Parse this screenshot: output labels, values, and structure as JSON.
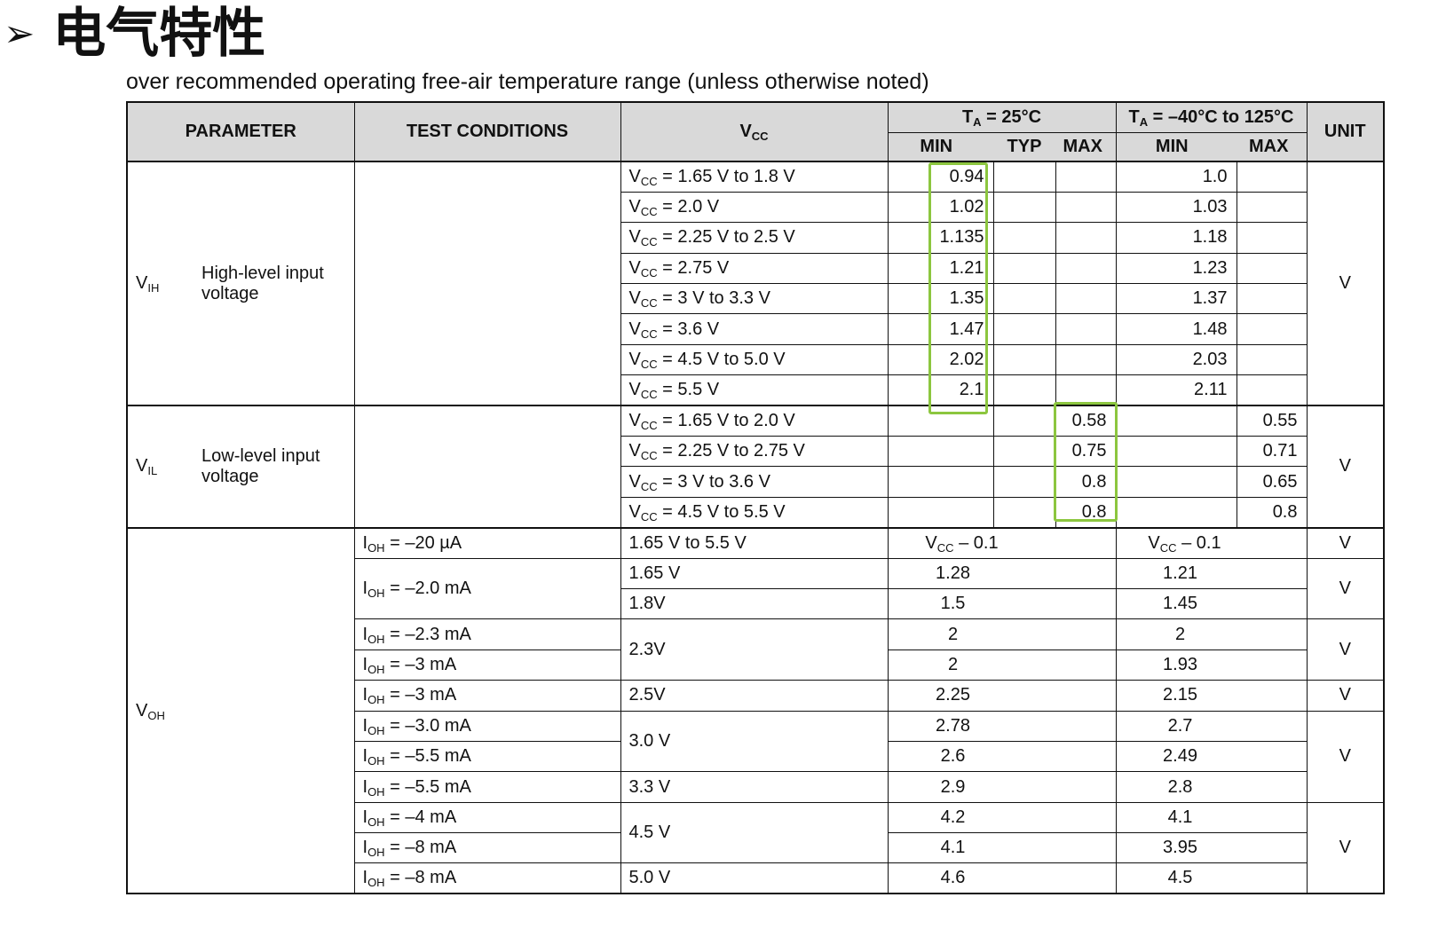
{
  "heading": {
    "arrow": "➢",
    "title": "电气特性"
  },
  "subtitle": "over recommended operating free-air temperature range (unless otherwise noted)",
  "table": {
    "headers": {
      "parameter": "PARAMETER",
      "test_conditions": "TEST CONDITIONS",
      "vcc": "V",
      "vcc_sub": "CC",
      "ta25_pre": "T",
      "ta25_sub": "A",
      "ta25_post": " = 25°C",
      "tarange_pre": "T",
      "tarange_sub": "A",
      "tarange_post": " = –40°C to 125°C",
      "unit": "UNIT",
      "min": "MIN",
      "typ": "TYP",
      "max": "MAX"
    },
    "vih": {
      "symbol": "V",
      "symbol_sub": "IH",
      "description": "High-level input voltage",
      "unit": "V",
      "rows": [
        {
          "vcc": " = 1.65 V to 1.8 V",
          "min25": "0.94",
          "minfull": "1.0"
        },
        {
          "vcc": " = 2.0 V",
          "min25": "1.02",
          "minfull": "1.03"
        },
        {
          "vcc": " = 2.25 V to 2.5 V",
          "min25": "1.135",
          "minfull": "1.18"
        },
        {
          "vcc": " = 2.75 V",
          "min25": "1.21",
          "minfull": "1.23"
        },
        {
          "vcc": " = 3 V to 3.3 V",
          "min25": "1.35",
          "minfull": "1.37"
        },
        {
          "vcc": " = 3.6 V",
          "min25": "1.47",
          "minfull": "1.48"
        },
        {
          "vcc": " = 4.5 V to 5.0 V",
          "min25": "2.02",
          "minfull": "2.03"
        },
        {
          "vcc": " = 5.5 V",
          "min25": "2.1",
          "minfull": "2.11"
        }
      ]
    },
    "vil": {
      "symbol": "V",
      "symbol_sub": "IL",
      "description": "Low-level input voltage",
      "unit": "V",
      "rows": [
        {
          "vcc": " = 1.65 V to 2.0 V",
          "max25": "0.58",
          "maxfull": "0.55"
        },
        {
          "vcc": " = 2.25 V to 2.75 V",
          "max25": "0.75",
          "maxfull": "0.71"
        },
        {
          "vcc": " = 3 V to 3.6 V",
          "max25": "0.8",
          "maxfull": "0.65"
        },
        {
          "vcc": " = 4.5 V to 5.5 V",
          "max25": "0.8",
          "maxfull": "0.8"
        }
      ]
    },
    "voh": {
      "symbol": "V",
      "symbol_sub": "OH",
      "unit": "V",
      "rows": [
        {
          "ioh": " = –20 µA",
          "vcc": "1.65 V to 5.5 V",
          "min25": " – 0.1",
          "minfull": " – 0.1"
        },
        {
          "ioh": " = –2.0 mA",
          "vcc": "1.65 V",
          "min25": "1.28",
          "minfull": "1.21"
        },
        {
          "vcc": "1.8V",
          "min25": "1.5",
          "minfull": "1.45"
        },
        {
          "ioh": " = –2.3 mA",
          "vcc": "2.3V",
          "min25": "2",
          "minfull": "2"
        },
        {
          "ioh": " = –3 mA",
          "min25": "2",
          "minfull": "1.93"
        },
        {
          "ioh": " = –3 mA",
          "vcc": "2.5V",
          "min25": "2.25",
          "minfull": "2.15"
        },
        {
          "ioh": " = –3.0 mA",
          "vcc": "3.0 V",
          "min25": "2.78",
          "minfull": "2.7"
        },
        {
          "ioh": " = –5.5 mA",
          "min25": "2.6",
          "minfull": "2.49"
        },
        {
          "ioh": " = –5.5 mA",
          "vcc": "3.3 V",
          "min25": "2.9",
          "minfull": "2.8"
        },
        {
          "ioh": " = –4 mA",
          "vcc": "4.5 V",
          "min25": "4.2",
          "minfull": "4.1"
        },
        {
          "ioh": " = –8 mA",
          "min25": "4.1",
          "minfull": "3.95"
        },
        {
          "ioh": " = –8 mA",
          "vcc": "5.0 V",
          "min25": "4.6",
          "minfull": "4.5"
        }
      ]
    }
  },
  "highlight_color": "#8cc63f"
}
